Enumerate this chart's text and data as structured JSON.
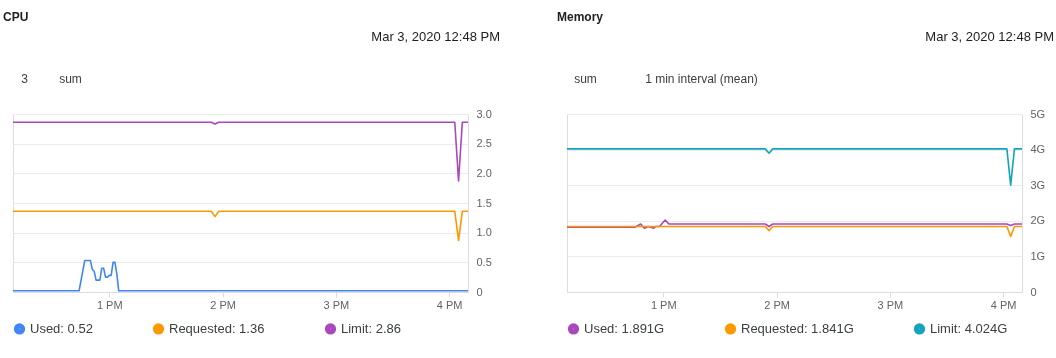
{
  "chart_data": [
    {
      "type": "line",
      "title": "CPU",
      "subtitle": "Mar 3, 2020 12:48 PM",
      "annotations": [
        "3",
        "sum"
      ],
      "xlim": [
        "2020-03-03T12:09",
        "2020-03-03T16:10"
      ],
      "xticks": [
        {
          "value": "2020-03-03T13:00",
          "label": "1 PM"
        },
        {
          "value": "2020-03-03T14:00",
          "label": "2 PM"
        },
        {
          "value": "2020-03-03T15:00",
          "label": "3 PM"
        },
        {
          "value": "2020-03-03T16:00",
          "label": "4 PM"
        }
      ],
      "ylim": [
        0,
        3
      ],
      "yticks": [
        {
          "value": 0,
          "label": "0"
        },
        0.5,
        {
          "value": 1,
          "label": "1.0"
        },
        1.5,
        {
          "value": 2,
          "label": "2.0"
        },
        2.5,
        {
          "value": 3,
          "label": "3.0"
        }
      ],
      "grid": "y",
      "legend": "bottom",
      "marker": "none",
      "line_style": "solid",
      "series": [
        {
          "name": "Used: 0.52",
          "color": "#4285f4",
          "x": [
            "2020-03-03T12:09",
            "2020-03-03T12:44",
            "2020-03-03T12:47",
            "2020-03-03T12:50",
            "2020-03-03T12:51",
            "2020-03-03T12:52",
            "2020-03-03T12:53",
            "2020-03-03T12:55",
            "2020-03-03T12:56",
            "2020-03-03T12:57",
            "2020-03-03T12:58",
            "2020-03-03T12:59",
            "2020-03-03T13:00",
            "2020-03-03T13:01",
            "2020-03-03T13:02",
            "2020-03-03T13:03",
            "2020-03-03T13:04",
            "2020-03-03T13:05",
            "2020-03-03T16:10"
          ],
          "values": [
            0.02,
            0.02,
            0.53,
            0.53,
            0.38,
            0.35,
            0.2,
            0.2,
            0.4,
            0.4,
            0.25,
            0.25,
            0.28,
            0.28,
            0.5,
            0.5,
            0.3,
            0.02,
            0.02
          ]
        },
        {
          "name": "Requested: 1.36",
          "color": "#ff9800",
          "x": [
            "2020-03-03T12:09",
            "2020-03-03T13:54",
            "2020-03-03T13:56",
            "2020-03-03T13:58",
            "2020-03-03T16:03",
            "2020-03-03T16:05",
            "2020-03-03T16:07",
            "2020-03-03T16:10"
          ],
          "values": [
            1.36,
            1.36,
            1.27,
            1.36,
            1.36,
            0.87,
            1.36,
            1.36
          ]
        },
        {
          "name": "Limit: 2.86",
          "color": "#ab47bc",
          "x": [
            "2020-03-03T12:09",
            "2020-03-03T13:54",
            "2020-03-03T13:56",
            "2020-03-03T13:58",
            "2020-03-03T16:03",
            "2020-03-03T16:05",
            "2020-03-03T16:07",
            "2020-03-03T16:10"
          ],
          "values": [
            2.86,
            2.86,
            2.83,
            2.86,
            2.86,
            1.87,
            2.86,
            2.86
          ]
        }
      ]
    },
    {
      "type": "line",
      "title": "Memory",
      "subtitle": "Mar 3, 2020 12:48 PM",
      "annotations": [
        "sum",
        "1 min interval (mean)"
      ],
      "xlim": [
        "2020-03-03T12:09",
        "2020-03-03T16:10"
      ],
      "xticks": [
        {
          "value": "2020-03-03T13:00",
          "label": "1 PM"
        },
        {
          "value": "2020-03-03T14:00",
          "label": "2 PM"
        },
        {
          "value": "2020-03-03T15:00",
          "label": "3 PM"
        },
        {
          "value": "2020-03-03T16:00",
          "label": "4 PM"
        }
      ],
      "ylim": [
        0,
        5
      ],
      "yticks": [
        0,
        {
          "value": 1,
          "label": "1G"
        },
        {
          "value": 2,
          "label": "2G"
        },
        {
          "value": 3,
          "label": "3G"
        },
        {
          "value": 4,
          "label": "4G"
        },
        {
          "value": 5,
          "label": "5G"
        }
      ],
      "grid": "y",
      "legend": "bottom",
      "marker": "none",
      "line_style": "solid",
      "series": [
        {
          "name": "Used: 1.891G",
          "color": "#ab47bc",
          "x": [
            "2020-03-03T12:09",
            "2020-03-03T12:45",
            "2020-03-03T12:48",
            "2020-03-03T12:50",
            "2020-03-03T12:52",
            "2020-03-03T12:55",
            "2020-03-03T12:56",
            "2020-03-03T12:58",
            "2020-03-03T13:01",
            "2020-03-03T13:03",
            "2020-03-03T13:54",
            "2020-03-03T13:56",
            "2020-03-03T13:58",
            "2020-03-03T16:02",
            "2020-03-03T16:04",
            "2020-03-03T16:06",
            "2020-03-03T16:10"
          ],
          "values": [
            1.82,
            1.82,
            1.91,
            1.79,
            1.84,
            1.79,
            1.84,
            1.84,
            2.02,
            1.91,
            1.91,
            1.84,
            1.91,
            1.91,
            1.87,
            1.91,
            1.91
          ]
        },
        {
          "name": "Requested: 1.841G",
          "color": "#ff9800",
          "x": [
            "2020-03-03T12:09",
            "2020-03-03T13:54",
            "2020-03-03T13:56",
            "2020-03-03T13:58",
            "2020-03-03T16:02",
            "2020-03-03T16:04",
            "2020-03-03T16:06",
            "2020-03-03T16:10"
          ],
          "values": [
            1.84,
            1.84,
            1.72,
            1.84,
            1.84,
            1.56,
            1.84,
            1.84
          ]
        },
        {
          "name": "Limit: 4.024G",
          "color": "#12a4bc",
          "x": [
            "2020-03-03T12:09",
            "2020-03-03T13:54",
            "2020-03-03T13:56",
            "2020-03-03T13:58",
            "2020-03-03T16:02",
            "2020-03-03T16:04",
            "2020-03-03T16:06",
            "2020-03-03T16:10"
          ],
          "values": [
            4.02,
            4.02,
            3.9,
            4.02,
            4.02,
            3.0,
            4.02,
            4.02
          ]
        }
      ]
    }
  ]
}
